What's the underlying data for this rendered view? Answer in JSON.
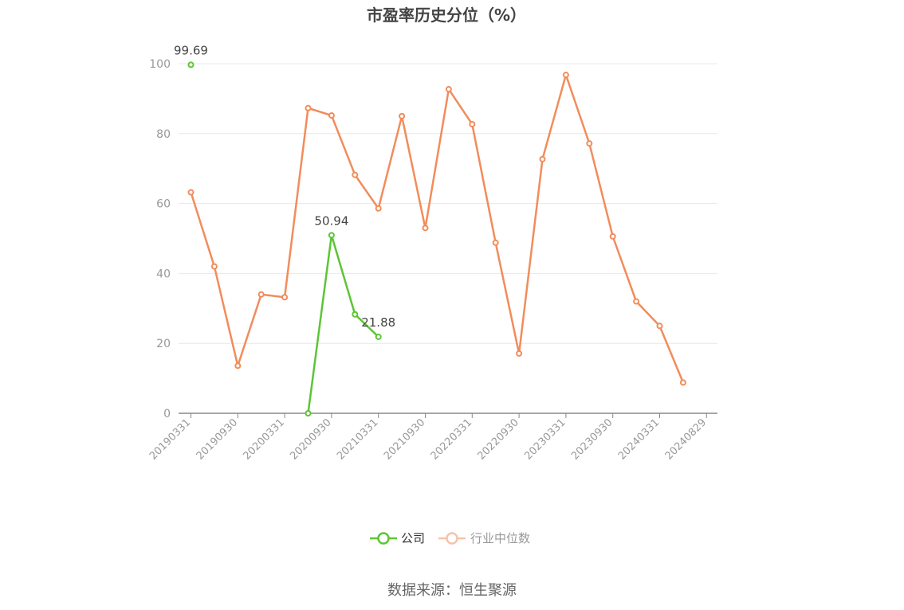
{
  "chart_data": {
    "type": "line",
    "title": "市盈率历史分位（%）",
    "source": "数据来源：恒生聚源",
    "ylim": [
      0,
      100
    ],
    "y_ticks": [
      "0",
      "20",
      "40",
      "60",
      "80",
      "100"
    ],
    "x": [
      "20190331",
      "20190630",
      "20190930",
      "20191231",
      "20200331",
      "20200630",
      "20200930",
      "20201231",
      "20210331",
      "20210630",
      "20210930",
      "20211231",
      "20220331",
      "20220630",
      "20220930",
      "20221231",
      "20230331",
      "20230630",
      "20230930",
      "20231231",
      "20240331",
      "20240630",
      "20240829"
    ],
    "x_tick_labels": [
      "20190331",
      "20190930",
      "20200331",
      "20200930",
      "20210331",
      "20210930",
      "20220331",
      "20220930",
      "20230331",
      "20230930",
      "20240331",
      "20240829"
    ],
    "series": [
      {
        "name": "公司",
        "color": "#5cc536",
        "values": [
          99.69,
          null,
          null,
          null,
          null,
          0,
          50.94,
          28.3,
          21.88,
          null,
          null,
          null,
          null,
          null,
          null,
          null,
          null,
          null,
          null,
          null,
          null,
          null,
          null
        ],
        "labels": [
          {
            "index": 0,
            "text": "99.69"
          },
          {
            "index": 6,
            "text": "50.94"
          },
          {
            "index": 8,
            "text": "21.88"
          }
        ]
      },
      {
        "name": "行业中位数",
        "color": "#f28c5a",
        "values": [
          63.2,
          42.0,
          13.6,
          34.0,
          33.2,
          87.3,
          85.2,
          68.2,
          58.6,
          85.0,
          53.0,
          92.7,
          82.7,
          48.8,
          17.1,
          72.7,
          96.8,
          77.2,
          50.6,
          32.0,
          25.0,
          8.8,
          null
        ]
      }
    ],
    "legend_position": "bottom-center",
    "grid": true
  }
}
